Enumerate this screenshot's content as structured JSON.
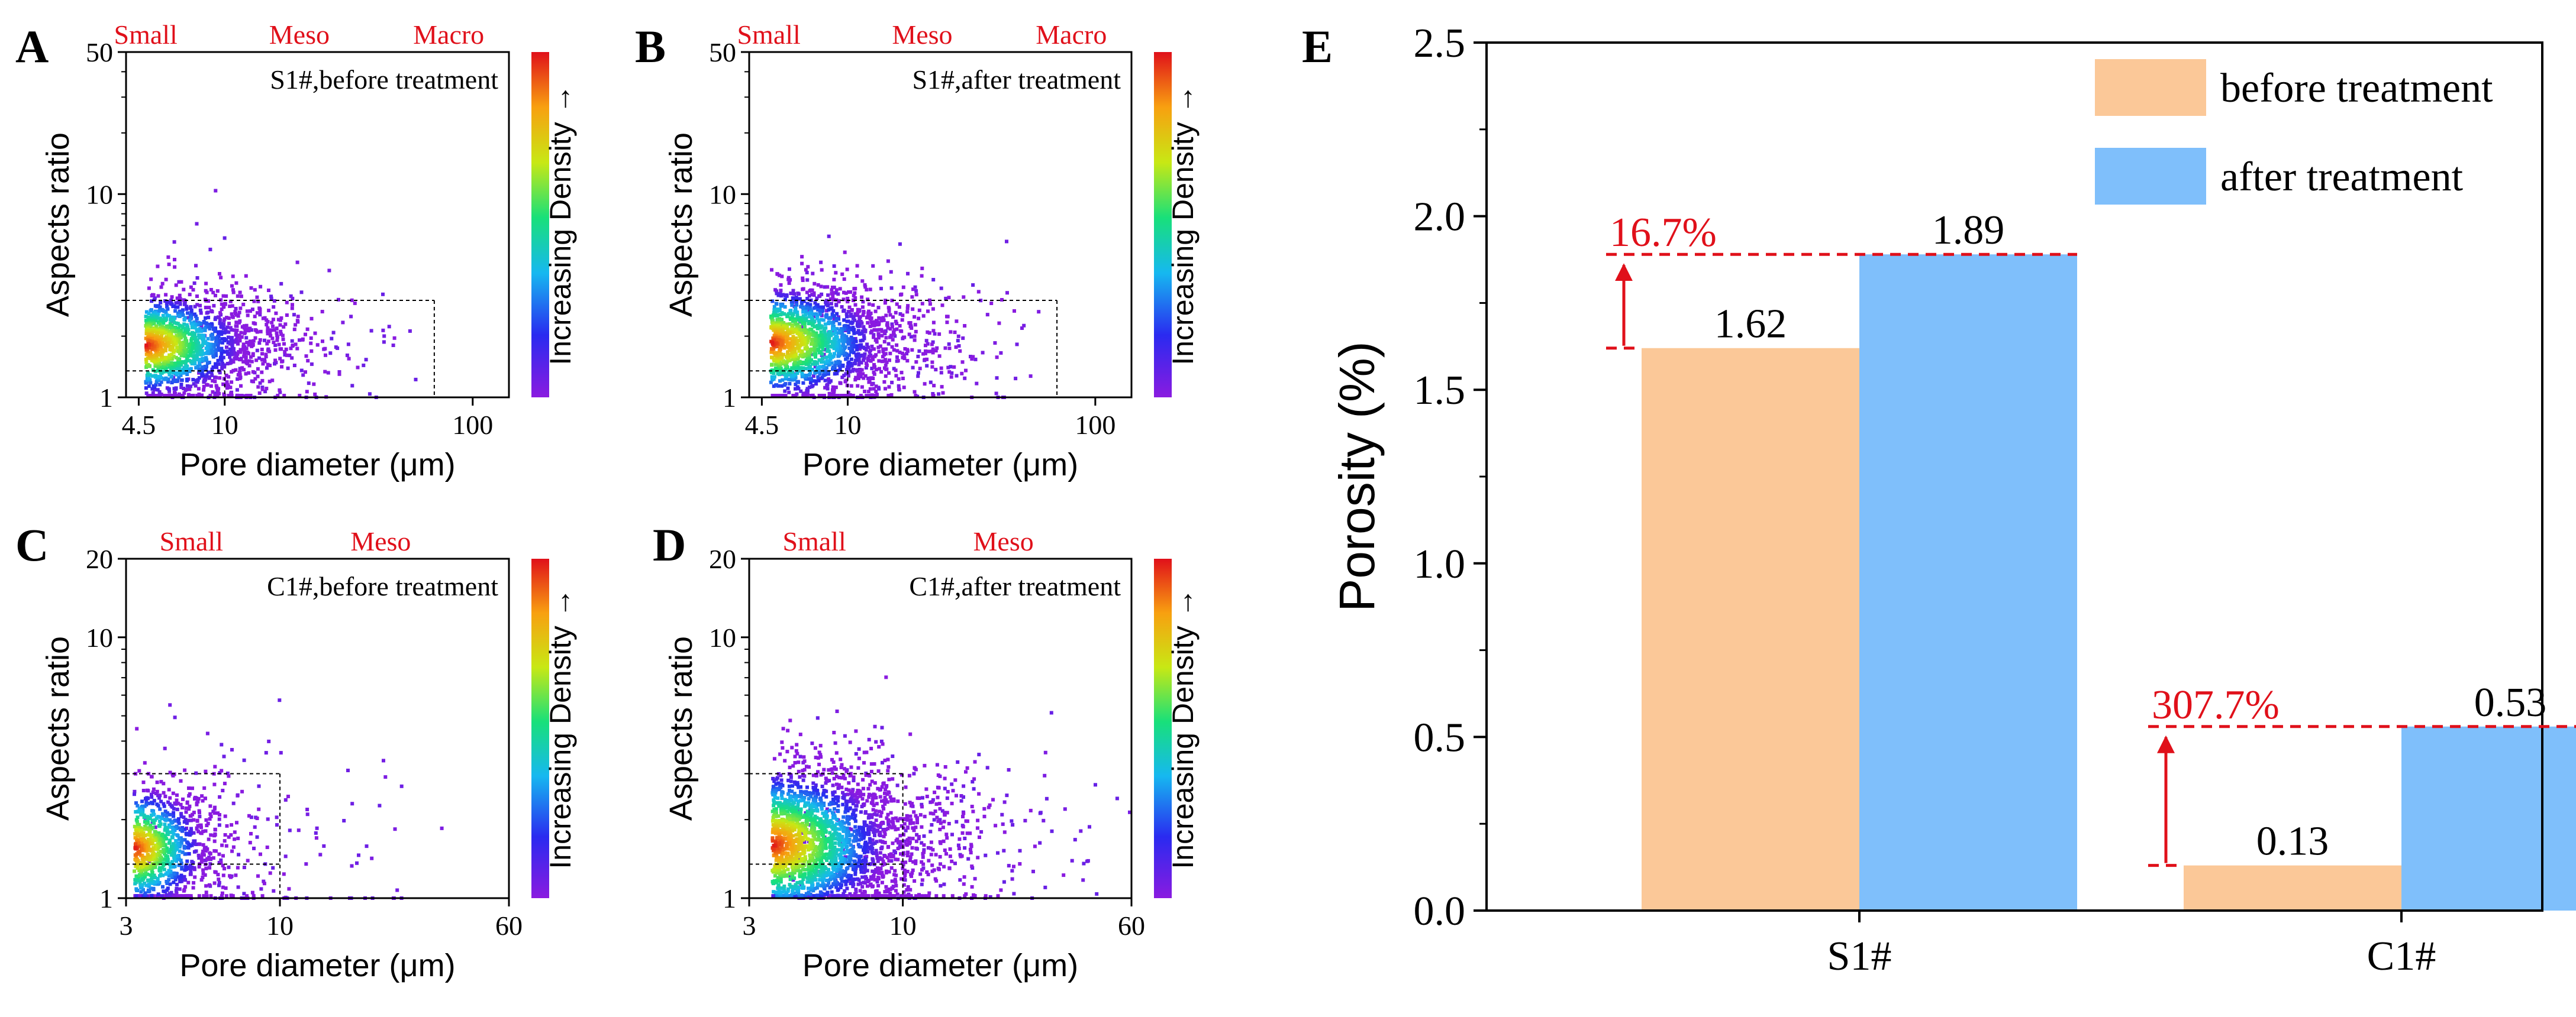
{
  "figure": {
    "panel_letters": [
      "A",
      "B",
      "C",
      "D",
      "E"
    ],
    "colorbar_label": "Increasing Density →"
  },
  "colors": {
    "before": "#FBC898",
    "after": "#7FBFFB",
    "annotation": "#E0101A",
    "scatter_low": "#8A1BE0",
    "scatter_high": "#E0101A"
  },
  "chart_data": [
    {
      "id": "A",
      "type": "scatter",
      "title": "S1#,before treatment",
      "xlabel": "Pore diameter (μm)",
      "ylabel": "Aspects ratio",
      "xscale": "log",
      "yscale": "log",
      "xlim": [
        4.0,
        140
      ],
      "ylim": [
        1,
        50
      ],
      "xticks": [
        4.5,
        10,
        100
      ],
      "xticklabels": [
        "4.5",
        "10",
        "100"
      ],
      "yticks": [
        1,
        10,
        50
      ],
      "yticklabels": [
        "1",
        "10",
        "50"
      ],
      "size_classes": [
        {
          "label": "Small",
          "x": 4.8
        },
        {
          "label": "Meso",
          "x": 20
        },
        {
          "label": "Macro",
          "x": 80
        }
      ],
      "guide_lines": {
        "x": [
          10,
          70
        ],
        "y": [
          1.35,
          3.0
        ]
      },
      "density": {
        "center_x": 4.8,
        "center_y": 1.8,
        "spread_x": 0.2,
        "spread_y": 0.13,
        "n": 1400,
        "outliers": 160,
        "max_x": 120
      },
      "colorbar": true
    },
    {
      "id": "B",
      "type": "scatter",
      "title": "S1#,after treatment",
      "xlabel": "Pore diameter (μm)",
      "ylabel": "Aspects ratio",
      "xscale": "log",
      "yscale": "log",
      "xlim": [
        4.0,
        140
      ],
      "ylim": [
        1,
        50
      ],
      "xticks": [
        4.5,
        10,
        100
      ],
      "xticklabels": [
        "4.5",
        "10",
        "100"
      ],
      "yticks": [
        1,
        10,
        50
      ],
      "yticklabels": [
        "1",
        "10",
        "50"
      ],
      "size_classes": [
        {
          "label": "Small",
          "x": 4.8
        },
        {
          "label": "Meso",
          "x": 20
        },
        {
          "label": "Macro",
          "x": 80
        }
      ],
      "guide_lines": {
        "x": [
          10,
          70
        ],
        "y": [
          1.35,
          3.0
        ]
      },
      "density": {
        "center_x": 4.9,
        "center_y": 1.85,
        "spread_x": 0.22,
        "spread_y": 0.14,
        "n": 1500,
        "outliers": 200,
        "max_x": 120
      },
      "colorbar": true
    },
    {
      "id": "C",
      "type": "scatter",
      "title": "C1#,before treatment",
      "xlabel": "Pore diameter (μm)",
      "ylabel": "Aspects ratio",
      "xscale": "log",
      "yscale": "log",
      "xlim": [
        3,
        60
      ],
      "ylim": [
        1,
        20
      ],
      "xticks": [
        3,
        10,
        60
      ],
      "xticklabels": [
        "3",
        "10",
        "60"
      ],
      "yticks": [
        1,
        10,
        20
      ],
      "yticklabels": [
        "1",
        "10",
        "20"
      ],
      "size_classes": [
        {
          "label": "Small",
          "x": 5
        },
        {
          "label": "Meso",
          "x": 22
        }
      ],
      "guide_lines": {
        "x": [
          10
        ],
        "y": [
          1.35,
          3.0
        ]
      },
      "density": {
        "center_x": 3.2,
        "center_y": 1.55,
        "spread_x": 0.12,
        "spread_y": 0.12,
        "n": 900,
        "outliers": 120,
        "max_x": 40
      },
      "colorbar": true
    },
    {
      "id": "D",
      "type": "scatter",
      "title": "C1#,after treatment",
      "xlabel": "Pore diameter (μm)",
      "ylabel": "Aspects ratio",
      "xscale": "log",
      "yscale": "log",
      "xlim": [
        3,
        60
      ],
      "ylim": [
        1,
        20
      ],
      "xticks": [
        3,
        10,
        60
      ],
      "xticklabels": [
        "3",
        "10",
        "60"
      ],
      "yticks": [
        1,
        10,
        20
      ],
      "yticklabels": [
        "1",
        "10",
        "20"
      ],
      "size_classes": [
        {
          "label": "Small",
          "x": 5
        },
        {
          "label": "Meso",
          "x": 22
        }
      ],
      "guide_lines": {
        "x": [
          10
        ],
        "y": [
          1.35,
          3.0
        ]
      },
      "density": {
        "center_x": 3.6,
        "center_y": 1.6,
        "spread_x": 0.2,
        "spread_y": 0.15,
        "n": 2200,
        "outliers": 260,
        "max_x": 60
      },
      "colorbar": true
    },
    {
      "id": "E",
      "type": "bar",
      "categories": [
        "S1#",
        "C1#"
      ],
      "series": [
        {
          "name": "before treatment",
          "values": [
            1.62,
            0.13
          ]
        },
        {
          "name": "after treatment",
          "values": [
            1.89,
            0.53
          ]
        }
      ],
      "data_labels": [
        [
          "1.62",
          "0.13"
        ],
        [
          "1.89",
          "0.53"
        ]
      ],
      "ylabel": "Porosity (%)",
      "xlabel": "",
      "ylim": [
        0.0,
        2.5
      ],
      "yticks": [
        0.0,
        0.5,
        1.0,
        1.5,
        2.0,
        2.5
      ],
      "yticklabels": [
        "0.0",
        "0.5",
        "1.0",
        "1.5",
        "2.0",
        "2.5"
      ],
      "legend_position": "top-right",
      "annotations": [
        {
          "text": "16.7%",
          "category": "S1#",
          "from": 1.62,
          "to": 1.89
        },
        {
          "text": "307.7%",
          "category": "C1#",
          "from": 0.13,
          "to": 0.53
        }
      ]
    }
  ]
}
